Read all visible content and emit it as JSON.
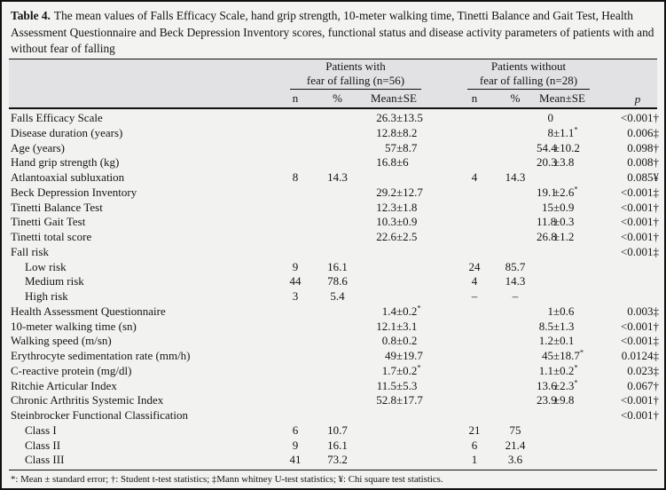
{
  "caption": {
    "label": "Table 4.",
    "text": "The mean values of Falls Efficacy Scale, hand grip strength, 10-meter walking time, Tinetti Balance and Gait Test, Health Assessment Questionnaire and Beck Depression Inventory scores, functional status and disease activity parameters of patients with and without fear of falling"
  },
  "header": {
    "group1_line1": "Patients with",
    "group1_line2": "fear of falling (n=56)",
    "group2_line1": "Patients without",
    "group2_line2": "fear of falling (n=28)",
    "col_n": "n",
    "col_pct": "%",
    "col_mean": "Mean±SE",
    "col_p": "p"
  },
  "rows": [
    {
      "name": "Falls Efficacy Scale",
      "indent": false,
      "g1": {
        "n": "",
        "pct": "",
        "mean": "26.3±13.5"
      },
      "g2": {
        "n": "",
        "pct": "",
        "mean": "0"
      },
      "p": "<0.001†"
    },
    {
      "name": "Disease duration (years)",
      "indent": false,
      "g1": {
        "n": "",
        "pct": "",
        "mean": "12.8±8.2"
      },
      "g2": {
        "n": "",
        "pct": "",
        "mean": "8±1.1*"
      },
      "p": "0.006‡"
    },
    {
      "name": "Age (years)",
      "indent": false,
      "g1": {
        "n": "",
        "pct": "",
        "mean": "57±8.7"
      },
      "g2": {
        "n": "",
        "pct": "",
        "mean": "54.4±10.2"
      },
      "p": "0.098†"
    },
    {
      "name": "Hand grip strength (kg)",
      "indent": false,
      "g1": {
        "n": "",
        "pct": "",
        "mean": "16.8±6"
      },
      "g2": {
        "n": "",
        "pct": "",
        "mean": "20.3±3.8"
      },
      "p": "0.008†"
    },
    {
      "name": "Atlantoaxial subluxation",
      "indent": false,
      "g1": {
        "n": "8",
        "pct": "14.3",
        "mean": ""
      },
      "g2": {
        "n": "4",
        "pct": "14.3",
        "mean": ""
      },
      "p": "0.085¥"
    },
    {
      "name": "Beck Depression Inventory",
      "indent": false,
      "g1": {
        "n": "",
        "pct": "",
        "mean": "29.2±12.7"
      },
      "g2": {
        "n": "",
        "pct": "",
        "mean": "19.1±2.6*"
      },
      "p": "<0.001‡"
    },
    {
      "name": "Tinetti Balance Test",
      "indent": false,
      "g1": {
        "n": "",
        "pct": "",
        "mean": "12.3±1.8"
      },
      "g2": {
        "n": "",
        "pct": "",
        "mean": "15±0.9"
      },
      "p": "<0.001†"
    },
    {
      "name": "Tinetti Gait Test",
      "indent": false,
      "g1": {
        "n": "",
        "pct": "",
        "mean": "10.3±0.9"
      },
      "g2": {
        "n": "",
        "pct": "",
        "mean": "11.8±0.3"
      },
      "p": "<0.001†"
    },
    {
      "name": "Tinetti total score",
      "indent": false,
      "g1": {
        "n": "",
        "pct": "",
        "mean": "22.6±2.5"
      },
      "g2": {
        "n": "",
        "pct": "",
        "mean": "26.8±1.2"
      },
      "p": "<0.001†"
    },
    {
      "name": "Fall risk",
      "indent": false,
      "g1": {
        "n": "",
        "pct": "",
        "mean": ""
      },
      "g2": {
        "n": "",
        "pct": "",
        "mean": ""
      },
      "p": "<0.001‡"
    },
    {
      "name": "Low risk",
      "indent": true,
      "g1": {
        "n": "9",
        "pct": "16.1",
        "mean": ""
      },
      "g2": {
        "n": "24",
        "pct": "85.7",
        "mean": ""
      },
      "p": ""
    },
    {
      "name": "Medium risk",
      "indent": true,
      "g1": {
        "n": "44",
        "pct": "78.6",
        "mean": ""
      },
      "g2": {
        "n": "4",
        "pct": "14.3",
        "mean": ""
      },
      "p": ""
    },
    {
      "name": "High risk",
      "indent": true,
      "g1": {
        "n": "3",
        "pct": "5.4",
        "mean": ""
      },
      "g2": {
        "n": "–",
        "pct": "–",
        "mean": ""
      },
      "p": ""
    },
    {
      "name": "Health Assessment Questionnaire",
      "indent": false,
      "g1": {
        "n": "",
        "pct": "",
        "mean": "1.4±0.2*"
      },
      "g2": {
        "n": "",
        "pct": "",
        "mean": "1±0.6"
      },
      "p": "0.003‡"
    },
    {
      "name": "10-meter walking time (sn)",
      "indent": false,
      "g1": {
        "n": "",
        "pct": "",
        "mean": "12.1±3.1"
      },
      "g2": {
        "n": "",
        "pct": "",
        "mean": "8.5±1.3"
      },
      "p": "<0.001†"
    },
    {
      "name": "Walking speed (m/sn)",
      "indent": false,
      "g1": {
        "n": "",
        "pct": "",
        "mean": "0.8±0.2"
      },
      "g2": {
        "n": "",
        "pct": "",
        "mean": "1.2±0.1"
      },
      "p": "<0.001‡"
    },
    {
      "name": "Erythrocyte sedimentation rate (mm/h)",
      "indent": false,
      "g1": {
        "n": "",
        "pct": "",
        "mean": "49±19.7"
      },
      "g2": {
        "n": "",
        "pct": "",
        "mean": "45±18.7*"
      },
      "p": "0.0124‡"
    },
    {
      "name": "C-reactive protein (mg/dl)",
      "indent": false,
      "g1": {
        "n": "",
        "pct": "",
        "mean": "1.7±0.2*"
      },
      "g2": {
        "n": "",
        "pct": "",
        "mean": "1.1±0.2*"
      },
      "p": "0.023‡"
    },
    {
      "name": "Ritchie Articular Index",
      "indent": false,
      "g1": {
        "n": "",
        "pct": "",
        "mean": "11.5±5.3"
      },
      "g2": {
        "n": "",
        "pct": "",
        "mean": "13.6±2.3*"
      },
      "p": "0.067†"
    },
    {
      "name": "Chronic Arthritis Systemic Index",
      "indent": false,
      "g1": {
        "n": "",
        "pct": "",
        "mean": "52.8±17.7"
      },
      "g2": {
        "n": "",
        "pct": "",
        "mean": "23.9±9.8"
      },
      "p": "<0.001†"
    },
    {
      "name": "Steinbrocker Functional Classification",
      "indent": false,
      "g1": {
        "n": "",
        "pct": "",
        "mean": ""
      },
      "g2": {
        "n": "",
        "pct": "",
        "mean": ""
      },
      "p": "<0.001†"
    },
    {
      "name": "Class I",
      "indent": true,
      "g1": {
        "n": "6",
        "pct": "10.7",
        "mean": ""
      },
      "g2": {
        "n": "21",
        "pct": "75",
        "mean": ""
      },
      "p": ""
    },
    {
      "name": "Class II",
      "indent": true,
      "g1": {
        "n": "9",
        "pct": "16.1",
        "mean": ""
      },
      "g2": {
        "n": "6",
        "pct": "21.4",
        "mean": ""
      },
      "p": ""
    },
    {
      "name": "Class III",
      "indent": true,
      "g1": {
        "n": "41",
        "pct": "73.2",
        "mean": ""
      },
      "g2": {
        "n": "1",
        "pct": "3.6",
        "mean": ""
      },
      "p": ""
    }
  ],
  "footnote": "*: Mean ± standard error; †: Student t-test statistics; ‡Mann whitney U-test statistics; ¥: Chi square test statistics.",
  "colors": {
    "frame": "#101010",
    "caption_bg": "#f3f3f2",
    "header_bg": "#e2e2e4",
    "body_bg": "#f2f2f1",
    "text": "#141414"
  }
}
